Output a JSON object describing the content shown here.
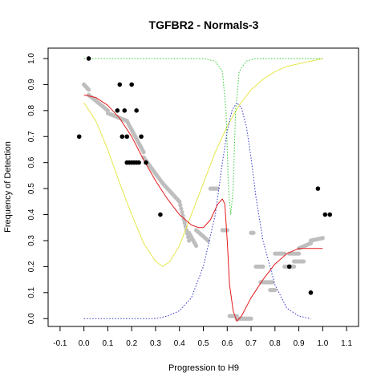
{
  "chart_data": {
    "type": "scatter",
    "title": "TGFBR2 - Normals-3",
    "xlabel": "Progression to H9",
    "ylabel": "Frequency of Detection",
    "xlim": [
      -0.15,
      1.15
    ],
    "ylim": [
      -0.03,
      1.04
    ],
    "xticks": [
      "-0.1",
      "0.0",
      "0.1",
      "0.2",
      "0.3",
      "0.4",
      "0.5",
      "0.6",
      "0.7",
      "0.8",
      "0.9",
      "1.0",
      "1.1"
    ],
    "yticks": [
      "0.0",
      "0.1",
      "0.2",
      "0.3",
      "0.4",
      "0.5",
      "0.6",
      "0.7",
      "0.8",
      "0.9",
      "1.0"
    ],
    "colors": {
      "black_points": "#000000",
      "gray_points": "#bebebe",
      "red_curve": "#e31a1c",
      "blue_curve": "#3333cc",
      "green_curve": "#33cc33",
      "yellow_curve": "#e6e64d"
    },
    "black_points": [
      {
        "x": -0.02,
        "y": 0.7
      },
      {
        "x": 0.02,
        "y": 1.0
      },
      {
        "x": 0.14,
        "y": 0.8
      },
      {
        "x": 0.15,
        "y": 0.9
      },
      {
        "x": 0.16,
        "y": 0.7
      },
      {
        "x": 0.17,
        "y": 0.8
      },
      {
        "x": 0.18,
        "y": 0.7
      },
      {
        "x": 0.18,
        "y": 0.6
      },
      {
        "x": 0.19,
        "y": 0.6
      },
      {
        "x": 0.2,
        "y": 0.9
      },
      {
        "x": 0.2,
        "y": 0.6
      },
      {
        "x": 0.21,
        "y": 0.6
      },
      {
        "x": 0.22,
        "y": 0.8
      },
      {
        "x": 0.22,
        "y": 0.6
      },
      {
        "x": 0.23,
        "y": 0.6
      },
      {
        "x": 0.24,
        "y": 0.7
      },
      {
        "x": 0.26,
        "y": 0.6
      },
      {
        "x": 0.32,
        "y": 0.4
      },
      {
        "x": 0.86,
        "y": 0.2
      },
      {
        "x": 0.95,
        "y": 0.1
      },
      {
        "x": 0.98,
        "y": 0.5
      },
      {
        "x": 1.01,
        "y": 0.4
      },
      {
        "x": 1.03,
        "y": 0.4
      }
    ],
    "gray_segments": [
      {
        "x0": 0.0,
        "x1": 0.02,
        "y0": 0.9,
        "y1": 0.88,
        "n": 8
      },
      {
        "x0": 0.02,
        "x1": 0.1,
        "y0": 0.86,
        "y1": 0.8,
        "n": 16
      },
      {
        "x0": 0.1,
        "x1": 0.18,
        "y0": 0.79,
        "y1": 0.76,
        "n": 18
      },
      {
        "x0": 0.18,
        "x1": 0.25,
        "y0": 0.76,
        "y1": 0.64,
        "n": 18
      },
      {
        "x0": 0.25,
        "x1": 0.33,
        "y0": 0.62,
        "y1": 0.52,
        "n": 18
      },
      {
        "x0": 0.33,
        "x1": 0.4,
        "y0": 0.52,
        "y1": 0.45,
        "n": 14
      },
      {
        "x0": 0.4,
        "x1": 0.44,
        "y0": 0.45,
        "y1": 0.3,
        "n": 12
      },
      {
        "x0": 0.44,
        "x1": 0.47,
        "y0": 0.33,
        "y1": 0.28,
        "n": 8
      },
      {
        "x0": 0.47,
        "x1": 0.52,
        "y0": 0.34,
        "y1": 0.3,
        "n": 10
      },
      {
        "x0": 0.53,
        "x1": 0.56,
        "y0": 0.5,
        "y1": 0.5,
        "n": 6
      },
      {
        "x0": 0.58,
        "x1": 0.6,
        "y0": 0.34,
        "y1": 0.34,
        "n": 4
      },
      {
        "x0": 0.61,
        "x1": 0.64,
        "y0": 0.01,
        "y1": 0.01,
        "n": 6
      },
      {
        "x0": 0.64,
        "x1": 0.7,
        "y0": 0.0,
        "y1": 0.0,
        "n": 12
      },
      {
        "x0": 0.7,
        "x1": 0.71,
        "y0": 0.33,
        "y1": 0.33,
        "n": 3
      },
      {
        "x0": 0.72,
        "x1": 0.75,
        "y0": 0.2,
        "y1": 0.2,
        "n": 6
      },
      {
        "x0": 0.74,
        "x1": 0.79,
        "y0": 0.14,
        "y1": 0.14,
        "n": 10
      },
      {
        "x0": 0.78,
        "x1": 0.8,
        "y0": 0.11,
        "y1": 0.11,
        "n": 4
      },
      {
        "x0": 0.8,
        "x1": 0.84,
        "y0": 0.25,
        "y1": 0.25,
        "n": 8
      },
      {
        "x0": 0.84,
        "x1": 0.88,
        "y0": 0.2,
        "y1": 0.2,
        "n": 8
      },
      {
        "x0": 0.86,
        "x1": 0.9,
        "y0": 0.25,
        "y1": 0.25,
        "n": 8
      },
      {
        "x0": 0.88,
        "x1": 0.92,
        "y0": 0.22,
        "y1": 0.22,
        "n": 8
      },
      {
        "x0": 0.9,
        "x1": 0.95,
        "y0": 0.27,
        "y1": 0.29,
        "n": 10
      },
      {
        "x0": 0.95,
        "x1": 1.0,
        "y0": 0.3,
        "y1": 0.31,
        "n": 10
      }
    ],
    "red_curve": [
      [
        0.0,
        0.86
      ],
      [
        0.05,
        0.85
      ],
      [
        0.1,
        0.82
      ],
      [
        0.15,
        0.77
      ],
      [
        0.2,
        0.7
      ],
      [
        0.25,
        0.61
      ],
      [
        0.3,
        0.53
      ],
      [
        0.35,
        0.46
      ],
      [
        0.4,
        0.4
      ],
      [
        0.45,
        0.36
      ],
      [
        0.48,
        0.35
      ],
      [
        0.5,
        0.35
      ],
      [
        0.53,
        0.38
      ],
      [
        0.56,
        0.44
      ],
      [
        0.58,
        0.46
      ],
      [
        0.59,
        0.44
      ],
      [
        0.6,
        0.3
      ],
      [
        0.61,
        0.13
      ],
      [
        0.625,
        0.03
      ],
      [
        0.64,
        -0.01
      ],
      [
        0.66,
        0.01
      ],
      [
        0.7,
        0.08
      ],
      [
        0.75,
        0.15
      ],
      [
        0.8,
        0.21
      ],
      [
        0.85,
        0.25
      ],
      [
        0.9,
        0.27
      ],
      [
        0.95,
        0.27
      ],
      [
        1.0,
        0.27
      ]
    ],
    "blue_curve": [
      [
        0.0,
        0.0
      ],
      [
        0.3,
        0.0
      ],
      [
        0.35,
        0.01
      ],
      [
        0.4,
        0.03
      ],
      [
        0.45,
        0.08
      ],
      [
        0.5,
        0.2
      ],
      [
        0.55,
        0.4
      ],
      [
        0.58,
        0.6
      ],
      [
        0.6,
        0.72
      ],
      [
        0.62,
        0.8
      ],
      [
        0.64,
        0.83
      ],
      [
        0.66,
        0.81
      ],
      [
        0.68,
        0.74
      ],
      [
        0.7,
        0.62
      ],
      [
        0.72,
        0.47
      ],
      [
        0.75,
        0.3
      ],
      [
        0.8,
        0.13
      ],
      [
        0.85,
        0.04
      ],
      [
        0.9,
        0.01
      ],
      [
        0.95,
        0.0
      ]
    ],
    "green_curve": [
      [
        0.0,
        1.0
      ],
      [
        0.5,
        1.0
      ],
      [
        0.55,
        0.99
      ],
      [
        0.58,
        0.95
      ],
      [
        0.595,
        0.8
      ],
      [
        0.605,
        0.5
      ],
      [
        0.615,
        0.4
      ],
      [
        0.625,
        0.5
      ],
      [
        0.635,
        0.8
      ],
      [
        0.65,
        0.95
      ],
      [
        0.68,
        0.99
      ],
      [
        0.72,
        1.0
      ],
      [
        1.0,
        1.0
      ]
    ],
    "yellow_curve": [
      [
        0.0,
        0.83
      ],
      [
        0.05,
        0.76
      ],
      [
        0.1,
        0.65
      ],
      [
        0.15,
        0.52
      ],
      [
        0.2,
        0.4
      ],
      [
        0.25,
        0.29
      ],
      [
        0.3,
        0.22
      ],
      [
        0.33,
        0.2
      ],
      [
        0.36,
        0.22
      ],
      [
        0.4,
        0.28
      ],
      [
        0.45,
        0.4
      ],
      [
        0.5,
        0.52
      ],
      [
        0.55,
        0.64
      ],
      [
        0.6,
        0.74
      ],
      [
        0.65,
        0.82
      ],
      [
        0.7,
        0.88
      ],
      [
        0.75,
        0.92
      ],
      [
        0.8,
        0.95
      ],
      [
        0.85,
        0.97
      ],
      [
        0.9,
        0.98
      ],
      [
        0.95,
        0.99
      ],
      [
        1.0,
        1.0
      ]
    ]
  }
}
